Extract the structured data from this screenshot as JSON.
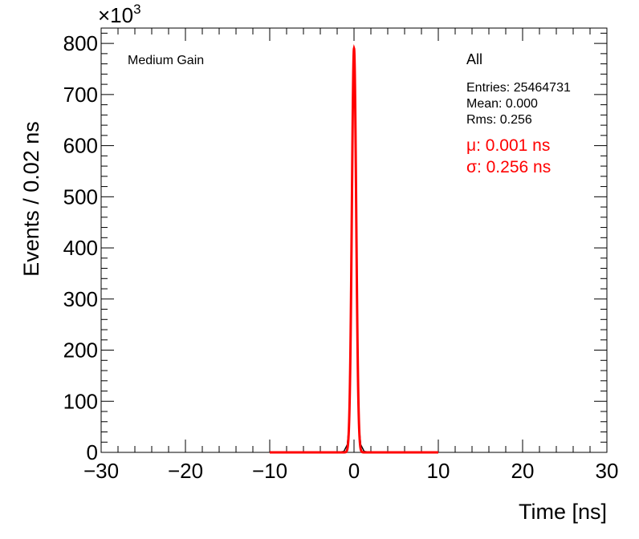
{
  "chart_data": {
    "type": "line",
    "xlabel": "Time [ns]",
    "ylabel": "Events / 0.02 ns",
    "xlim": [
      -30,
      30
    ],
    "ylim": [
      0,
      830
    ],
    "y_multiplier": "×10",
    "y_multiplier_exp": "3",
    "xticks": [
      "−30",
      "−20",
      "−10",
      "0",
      "10",
      "20",
      "30"
    ],
    "xtick_values": [
      -30,
      -20,
      -10,
      0,
      10,
      20,
      30
    ],
    "yticks": [
      "0",
      "100",
      "200",
      "300",
      "400",
      "500",
      "600",
      "700",
      "800"
    ],
    "ytick_values": [
      0,
      100,
      200,
      300,
      400,
      500,
      600,
      700,
      800
    ],
    "label": "Medium Gain",
    "stats": {
      "title": "All",
      "entries": "Entries: 25464731",
      "mean": "Mean: 0.000",
      "rms": "Rms: 0.256"
    },
    "fit": {
      "mu": "μ: 0.001 ns",
      "sigma": "σ: 0.256 ns",
      "mu_value": 0.001,
      "sigma_value": 0.256,
      "peak": 790,
      "range": [
        -10,
        10
      ],
      "color": "#ff0000"
    },
    "series": [
      {
        "values_x": [
          -10,
          -2,
          -1.2,
          -0.8,
          -0.6,
          -0.4,
          -0.2,
          -0.1,
          0,
          0.1,
          0.2,
          0.4,
          0.6,
          0.8,
          1.2,
          2,
          10
        ],
        "values_y": [
          0,
          0,
          2,
          15,
          50,
          230,
          600,
          740,
          790,
          740,
          600,
          230,
          50,
          15,
          2,
          0,
          0
        ],
        "color": "#000000"
      }
    ]
  }
}
